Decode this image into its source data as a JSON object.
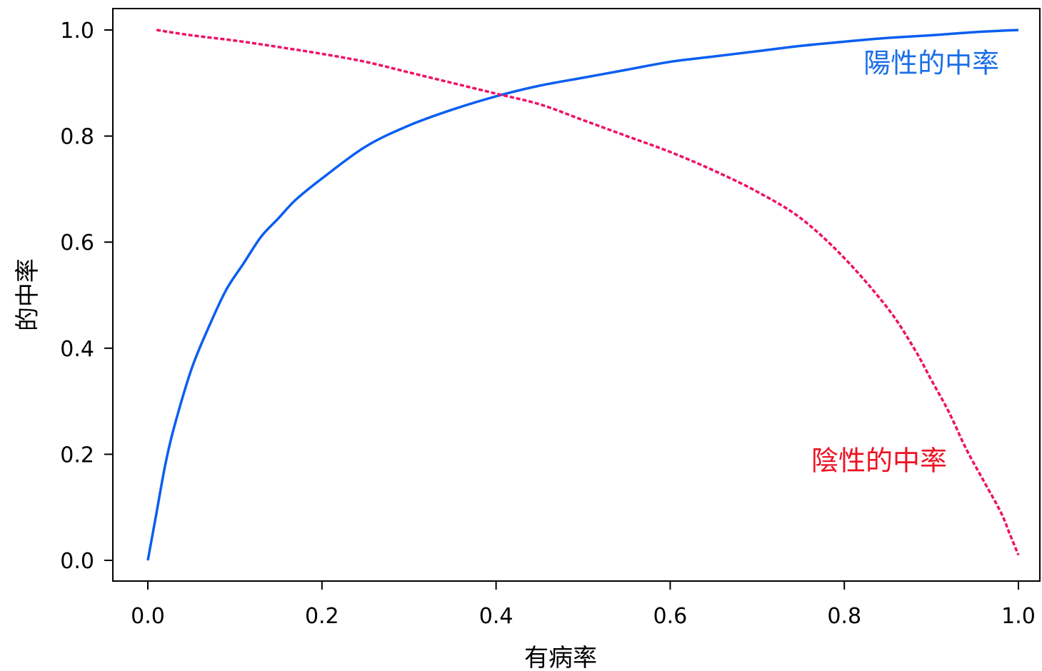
{
  "chart_data": {
    "type": "line",
    "title": "",
    "xlabel": "有病率",
    "ylabel": "的中率",
    "xlim": [
      0.0,
      1.0
    ],
    "ylim": [
      0.0,
      1.0
    ],
    "x_ticks": [
      "0.0",
      "0.2",
      "0.4",
      "0.6",
      "0.8",
      "1.0"
    ],
    "y_ticks": [
      "0.0",
      "0.2",
      "0.4",
      "0.6",
      "0.8",
      "1.0"
    ],
    "grid": false,
    "legend": "none",
    "series": [
      {
        "name": "陽性的中率",
        "color": "#0a5ef0",
        "style": "solid",
        "x": [
          0.0,
          0.01,
          0.02,
          0.03,
          0.05,
          0.07,
          0.09,
          0.11,
          0.13,
          0.15,
          0.17,
          0.2,
          0.25,
          0.3,
          0.35,
          0.4,
          0.45,
          0.5,
          0.55,
          0.6,
          0.65,
          0.7,
          0.75,
          0.8,
          0.85,
          0.9,
          0.95,
          1.0
        ],
        "values": [
          0.0,
          0.09,
          0.18,
          0.25,
          0.36,
          0.44,
          0.51,
          0.56,
          0.61,
          0.645,
          0.68,
          0.72,
          0.78,
          0.82,
          0.85,
          0.875,
          0.895,
          0.91,
          0.925,
          0.94,
          0.95,
          0.96,
          0.97,
          0.978,
          0.985,
          0.99,
          0.996,
          1.0
        ]
      },
      {
        "name": "陰性的中率",
        "color": "#ee1166",
        "style": "dashed",
        "x": [
          0.01,
          0.05,
          0.1,
          0.15,
          0.2,
          0.25,
          0.3,
          0.35,
          0.4,
          0.45,
          0.5,
          0.55,
          0.6,
          0.65,
          0.7,
          0.75,
          0.8,
          0.85,
          0.88,
          0.9,
          0.92,
          0.94,
          0.96,
          0.98,
          0.99,
          1.0
        ],
        "values": [
          1.0,
          0.99,
          0.98,
          0.968,
          0.955,
          0.94,
          0.92,
          0.9,
          0.88,
          0.86,
          0.83,
          0.8,
          0.77,
          0.735,
          0.695,
          0.645,
          0.57,
          0.475,
          0.4,
          0.34,
          0.28,
          0.21,
          0.15,
          0.09,
          0.05,
          0.01
        ]
      }
    ],
    "annotations": [
      {
        "text": "陽性的中率",
        "series": 0,
        "x": 0.9,
        "y": 0.92,
        "color": "#1a6ee8"
      },
      {
        "text": "陰性的中率",
        "series": 1,
        "x": 0.84,
        "y": 0.17,
        "color": "#ee1122"
      }
    ]
  }
}
